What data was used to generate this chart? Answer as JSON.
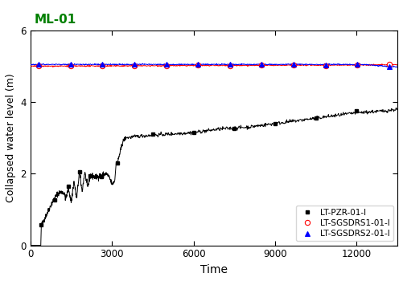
{
  "title": "ML-01",
  "title_color": "#008000",
  "xlabel": "Time",
  "ylabel": "Collapsed water level (m)",
  "xlim": [
    0,
    13500
  ],
  "ylim": [
    0,
    6
  ],
  "xticks": [
    0,
    3000,
    6000,
    9000,
    12000
  ],
  "yticks": [
    0,
    2,
    4,
    6
  ],
  "legend_entries": [
    "LT-PZR-01-I",
    "LT-SGSDRS1-01-I",
    "LT-SGSDRS2-01-I"
  ],
  "line1_color": "black",
  "line2_color": "red",
  "line3_color": "blue",
  "figsize": [
    5.01,
    3.5
  ],
  "dpi": 100
}
